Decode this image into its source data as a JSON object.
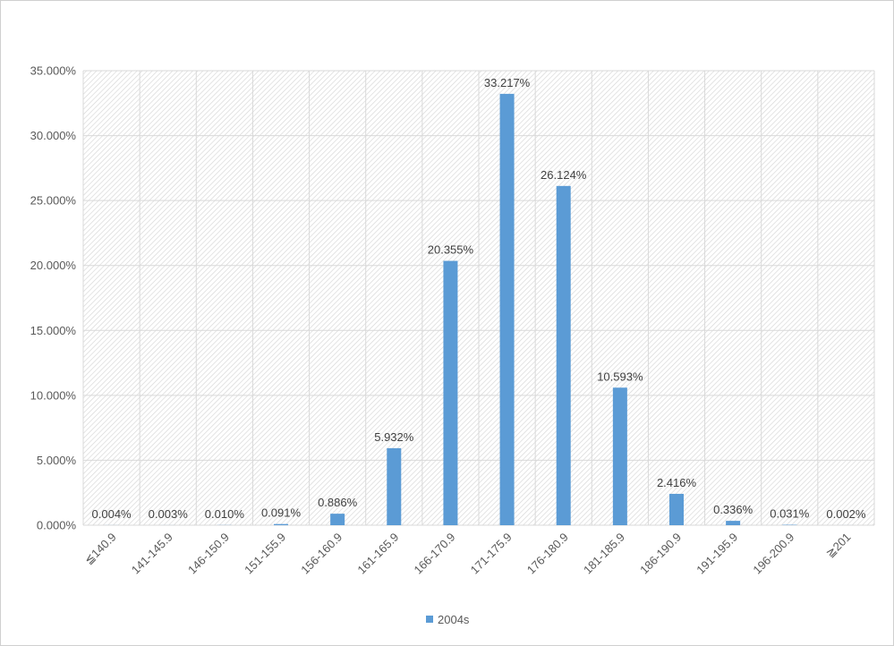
{
  "chart_data": {
    "type": "bar",
    "categories": [
      "≦140.9",
      "141-145.9",
      "146-150.9",
      "151-155.9",
      "156-160.9",
      "161-165.9",
      "166-170.9",
      "171-175.9",
      "176-180.9",
      "181-185.9",
      "186-190.9",
      "191-195.9",
      "196-200.9",
      "≧201"
    ],
    "series": [
      {
        "name": "2004s",
        "values": [
          0.004,
          0.003,
          0.01,
          0.091,
          0.886,
          5.932,
          20.355,
          33.217,
          26.124,
          10.593,
          2.416,
          0.336,
          0.031,
          0.002
        ],
        "labels": [
          "0.004%",
          "0.003%",
          "0.010%",
          "0.091%",
          "0.886%",
          "5.932%",
          "20.355%",
          "33.217%",
          "26.124%",
          "10.593%",
          "2.416%",
          "0.336%",
          "0.031%",
          "0.002%"
        ],
        "color": "#5b9bd5"
      }
    ],
    "yticks": [
      0,
      5,
      10,
      15,
      20,
      25,
      30,
      35
    ],
    "ytick_labels": [
      "0.000%",
      "5.000%",
      "10.000%",
      "15.000%",
      "20.000%",
      "25.000%",
      "30.000%",
      "35.000%"
    ],
    "ylim": [
      0,
      35
    ],
    "title": "",
    "xlabel": "",
    "ylabel": "",
    "grid": true,
    "legend_position": "bottom",
    "plot_background": "hatched"
  }
}
